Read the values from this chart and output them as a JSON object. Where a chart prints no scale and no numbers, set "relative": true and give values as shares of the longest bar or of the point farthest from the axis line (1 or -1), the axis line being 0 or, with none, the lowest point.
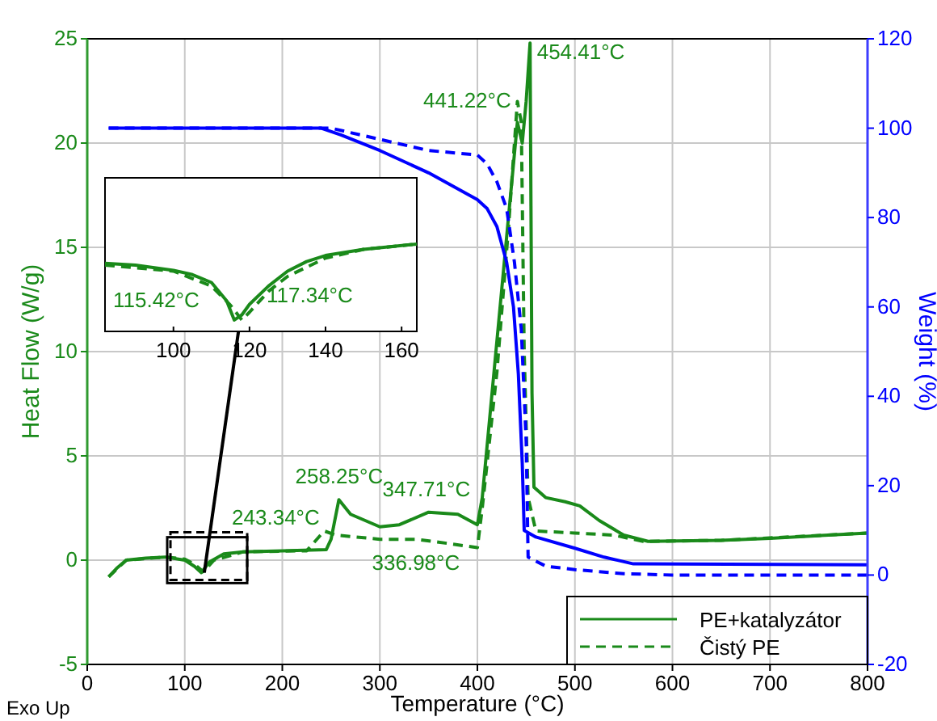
{
  "chart_data": [
    {
      "type": "line",
      "xlabel": "Temperature (°C)",
      "ylabel": "Heat Flow (W/g)",
      "y2label": "Weight (%)",
      "xlim": [
        0,
        800
      ],
      "xticks": [
        0,
        100,
        200,
        300,
        400,
        500,
        600,
        700,
        800
      ],
      "ylim": [
        -5,
        25
      ],
      "yticks": [
        -5,
        0,
        5,
        10,
        15,
        20,
        25
      ],
      "y2lim": [
        -20,
        120
      ],
      "y2ticks": [
        -20,
        0,
        20,
        40,
        60,
        80,
        100,
        120
      ],
      "grid": true,
      "legend": "bottom right",
      "marker": "none",
      "series": [
        {
          "name": "PE+katalyzátor",
          "color": "#1a8a1a",
          "line_style": "solid",
          "x": [
            22,
            30,
            40,
            60,
            80,
            100,
            110,
            117,
            125,
            140,
            160,
            200,
            245,
            250,
            258,
            270,
            300,
            320,
            350,
            380,
            400,
            405,
            415,
            425,
            435,
            441,
            446,
            450,
            454,
            456,
            458,
            470,
            490,
            505,
            525,
            550,
            575,
            650,
            700,
            800
          ],
          "values": [
            -0.8,
            -0.4,
            0,
            0.1,
            0.15,
            0,
            -0.3,
            -0.6,
            -0.1,
            0.3,
            0.4,
            0.45,
            0.5,
            1.0,
            2.9,
            2.2,
            1.6,
            1.7,
            2.3,
            2.2,
            1.7,
            3,
            8,
            13,
            18,
            21,
            20,
            22,
            24.8,
            8,
            3.5,
            3,
            2.8,
            2.6,
            1.9,
            1.2,
            0.9,
            0.95,
            1.05,
            1.3
          ]
        },
        {
          "name": "Čistý PE",
          "color": "#1a8a1a",
          "line_style": "dashed",
          "x": [
            22,
            40,
            80,
            100,
            110,
            119,
            130,
            160,
            225,
            243,
            255,
            300,
            337,
            370,
            400,
            405,
            420,
            432,
            441,
            445,
            448,
            452,
            460,
            500,
            540,
            570,
            650,
            800
          ],
          "values": [
            -0.8,
            0,
            0.15,
            0.05,
            -0.2,
            -0.55,
            0,
            0.4,
            0.45,
            1.4,
            1.2,
            1.0,
            1.0,
            0.8,
            0.6,
            2.5,
            9,
            16,
            22,
            21,
            10,
            3,
            1.4,
            1.3,
            1.2,
            0.9,
            0.95,
            1.3
          ]
        },
        {
          "color": "#0000ff",
          "axis": "y2",
          "line_style": "solid",
          "x": [
            22,
            200,
            240,
            260,
            300,
            350,
            400,
            410,
            420,
            430,
            437,
            442,
            446,
            448,
            460,
            500,
            530,
            560,
            800
          ],
          "values": [
            100,
            100,
            100,
            98.5,
            95,
            90,
            84,
            82,
            78,
            70,
            60,
            45,
            25,
            10,
            8.5,
            6,
            4,
            2.5,
            2.3
          ]
        },
        {
          "color": "#0000ff",
          "axis": "y2",
          "line_style": "dashed",
          "x": [
            22,
            250,
            270,
            300,
            350,
            400,
            410,
            420,
            430,
            438,
            445,
            450,
            452,
            470,
            500,
            550,
            600,
            800
          ],
          "values": [
            100,
            100,
            99,
            97.5,
            95,
            94,
            92,
            88,
            82,
            70,
            55,
            30,
            4,
            2,
            1.2,
            0.3,
            0,
            0
          ]
        }
      ],
      "annotations": [
        {
          "text": "454.41°C",
          "x": 454.41,
          "y": 24.8
        },
        {
          "text": "441.22°C",
          "x": 441.22,
          "y": 22
        },
        {
          "text": "258.25°C",
          "x": 258.25,
          "y": 2.9
        },
        {
          "text": "243.34°C",
          "x": 243.34,
          "y": 1.4
        },
        {
          "text": "347.71°C",
          "x": 347.71,
          "y": 2.3
        },
        {
          "text": "336.98°C",
          "x": 336.98,
          "y": 1.0
        },
        "Exo Up"
      ]
    },
    {
      "type": "line",
      "relative": true,
      "xlim": [
        82,
        164
      ],
      "xticks": [
        100,
        120,
        140,
        160
      ],
      "tick_labels": "x",
      "marker": "none",
      "series": [
        {
          "color": "#1a8a1a",
          "line_style": "solid",
          "x": [
            82,
            90,
            100,
            105,
            110,
            114,
            116,
            118,
            120,
            125,
            130,
            135,
            140,
            150,
            164
          ],
          "values": [
            0.78,
            0.76,
            0.7,
            0.65,
            0.56,
            0.35,
            0.13,
            0.19,
            0.31,
            0.52,
            0.69,
            0.8,
            0.87,
            0.94,
            1
          ]
        },
        {
          "color": "#1a8a1a",
          "line_style": "dashed",
          "x": [
            82,
            100,
            110,
            115,
            118,
            120,
            125,
            130,
            140,
            150,
            164
          ],
          "values": [
            0.76,
            0.69,
            0.52,
            0.3,
            0.13,
            0.22,
            0.46,
            0.63,
            0.84,
            0.94,
            1
          ]
        }
      ],
      "annotations": [
        "115.42°C",
        "117.34°C"
      ]
    }
  ]
}
